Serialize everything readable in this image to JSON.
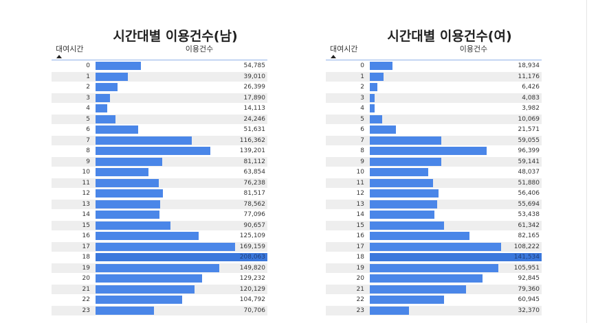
{
  "colors": {
    "bar": "#4a86e8",
    "stripe": "#eeeeee"
  },
  "chart_data": [
    {
      "type": "bar",
      "orientation": "horizontal",
      "title": "시간대별 이용건수(남)",
      "row_header": "대여시간",
      "value_header": "이용건수",
      "sort_indicator": "ascending",
      "categories": [
        "0",
        "1",
        "2",
        "3",
        "4",
        "5",
        "6",
        "7",
        "8",
        "9",
        "10",
        "11",
        "12",
        "13",
        "14",
        "15",
        "16",
        "17",
        "18",
        "19",
        "20",
        "21",
        "22",
        "23"
      ],
      "values": [
        54785,
        39010,
        26399,
        17890,
        14113,
        24246,
        51631,
        116362,
        139201,
        81112,
        63854,
        76238,
        81517,
        78562,
        77096,
        90657,
        125109,
        169159,
        208063,
        149820,
        129232,
        120129,
        104792,
        70706
      ],
      "value_labels": [
        "54,785",
        "39,010",
        "26,399",
        "17,890",
        "14,113",
        "24,246",
        "51,631",
        "116,362",
        "139,201",
        "81,112",
        "63,854",
        "76,238",
        "81,517",
        "78,562",
        "77,096",
        "90,657",
        "125,109",
        "169,159",
        "208,063",
        "149,820",
        "129,232",
        "120,129",
        "104,792",
        "70,706"
      ],
      "xlim": [
        0,
        208063
      ]
    },
    {
      "type": "bar",
      "orientation": "horizontal",
      "title": "시간대별 이용건수(여)",
      "row_header": "대여시간",
      "value_header": "이용건수",
      "sort_indicator": "ascending",
      "categories": [
        "0",
        "1",
        "2",
        "3",
        "4",
        "5",
        "6",
        "7",
        "8",
        "9",
        "10",
        "11",
        "12",
        "13",
        "14",
        "15",
        "16",
        "17",
        "18",
        "19",
        "20",
        "21",
        "22",
        "23"
      ],
      "values": [
        18934,
        11176,
        6426,
        4083,
        3982,
        10069,
        21571,
        59055,
        96399,
        59141,
        48037,
        51880,
        56406,
        55694,
        53438,
        61342,
        82165,
        108222,
        141534,
        105951,
        92845,
        79360,
        60945,
        32370
      ],
      "value_labels": [
        "18,934",
        "11,176",
        "6,426",
        "4,083",
        "3,982",
        "10,069",
        "21,571",
        "59,055",
        "96,399",
        "59,141",
        "48,037",
        "51,880",
        "56,406",
        "55,694",
        "53,438",
        "61,342",
        "82,165",
        "108,222",
        "141,534",
        "105,951",
        "92,845",
        "79,360",
        "60,945",
        "32,370"
      ],
      "xlim": [
        0,
        141534
      ]
    }
  ]
}
